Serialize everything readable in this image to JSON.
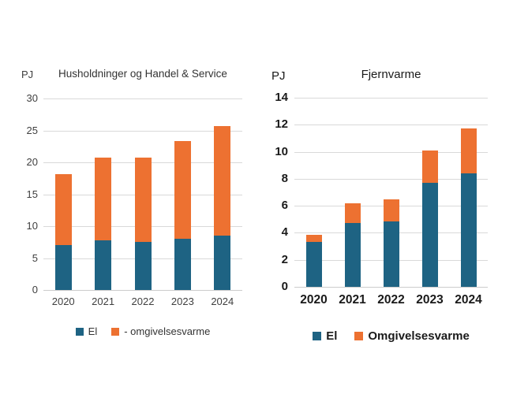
{
  "figure": {
    "unit": "PJ"
  },
  "chart_data": [
    {
      "type": "bar",
      "stacked": true,
      "title": "Husholdninger og Handel & Service",
      "unit_label": "PJ",
      "categories": [
        "2020",
        "2021",
        "2022",
        "2023",
        "2024"
      ],
      "series": [
        {
          "name": "El",
          "color": "#1e6383",
          "values": [
            7.0,
            7.8,
            7.5,
            8.0,
            8.5
          ]
        },
        {
          "name": "- omgivelsesvarme",
          "color": "#ed7131",
          "values": [
            11.1,
            12.9,
            13.2,
            15.3,
            17.2
          ]
        }
      ],
      "totals": [
        18.1,
        20.7,
        20.7,
        23.3,
        25.7
      ],
      "ylim": [
        0,
        30
      ],
      "yticks": [
        0,
        5,
        10,
        15,
        20,
        25,
        30
      ],
      "grid": true,
      "grid_color": "#d9d9d9",
      "axis_color": "#cccccc",
      "legend_position": "bottom"
    },
    {
      "type": "bar",
      "stacked": true,
      "title": "Fjernvarme",
      "unit_label": "PJ",
      "categories": [
        "2020",
        "2021",
        "2022",
        "2023",
        "2024"
      ],
      "series": [
        {
          "name": "El",
          "color": "#1e6383",
          "values": [
            3.3,
            4.75,
            4.85,
            7.7,
            8.4
          ]
        },
        {
          "name": "Omgivelsesvarme",
          "color": "#ed7131",
          "values": [
            0.55,
            1.45,
            1.65,
            2.4,
            3.3
          ]
        }
      ],
      "totals": [
        3.85,
        6.2,
        6.5,
        10.1,
        11.7
      ],
      "ylim": [
        0,
        14
      ],
      "yticks": [
        0,
        2,
        4,
        6,
        8,
        10,
        12,
        14
      ],
      "grid": true,
      "grid_color": "#d9d9d9",
      "axis_color": "#cccccc",
      "legend_position": "bottom"
    }
  ]
}
